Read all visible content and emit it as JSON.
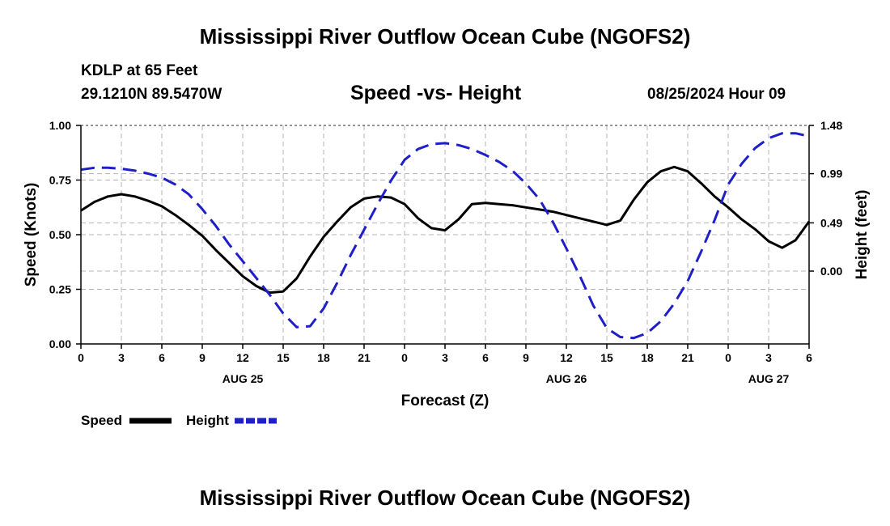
{
  "page": {
    "top_title": "Mississippi River Outflow Ocean Cube (NGOFS2)",
    "bottom_title": "Mississippi River Outflow Ocean Cube (NGOFS2)",
    "station": "KDLP at 65 Feet",
    "coords": "29.1210N  89.5470W",
    "plot_title": "Speed -vs- Height",
    "datetime": "08/25/2024 Hour 09"
  },
  "chart_data": {
    "type": "line",
    "title": "Speed -vs- Height",
    "xlabel": "Forecast (Z)",
    "ylabel": "Speed (Knots)",
    "y2label": "Height (feet)",
    "x_range_hours": [
      0,
      54
    ],
    "x_ticks": [
      {
        "h": 0,
        "label": "0"
      },
      {
        "h": 3,
        "label": "3"
      },
      {
        "h": 6,
        "label": "6"
      },
      {
        "h": 9,
        "label": "9"
      },
      {
        "h": 12,
        "label": "12"
      },
      {
        "h": 15,
        "label": "15"
      },
      {
        "h": 18,
        "label": "18"
      },
      {
        "h": 21,
        "label": "21"
      },
      {
        "h": 24,
        "label": "0"
      },
      {
        "h": 27,
        "label": "3"
      },
      {
        "h": 30,
        "label": "6"
      },
      {
        "h": 33,
        "label": "9"
      },
      {
        "h": 36,
        "label": "12"
      },
      {
        "h": 39,
        "label": "15"
      },
      {
        "h": 42,
        "label": "18"
      },
      {
        "h": 45,
        "label": "21"
      },
      {
        "h": 48,
        "label": "0"
      },
      {
        "h": 51,
        "label": "3"
      },
      {
        "h": 54,
        "label": "6"
      }
    ],
    "date_labels": [
      {
        "h": 12,
        "label": "AUG 25"
      },
      {
        "h": 36,
        "label": "AUG 26"
      },
      {
        "h": 51,
        "label": "AUG 27"
      }
    ],
    "ylim": [
      0,
      1.0
    ],
    "y_ticks": [
      {
        "v": 0.0,
        "label": "0.00"
      },
      {
        "v": 0.25,
        "label": "0.25"
      },
      {
        "v": 0.5,
        "label": "0.50"
      },
      {
        "v": 0.75,
        "label": "0.75"
      },
      {
        "v": 1.0,
        "label": "1.00"
      }
    ],
    "y2lim": [
      -0.74,
      1.48
    ],
    "y2_ticks": [
      {
        "v": 0.0,
        "label": "0.00"
      },
      {
        "v": 0.49,
        "label": "0.49"
      },
      {
        "v": 0.99,
        "label": "0.99"
      },
      {
        "v": 1.48,
        "label": "1.48"
      }
    ],
    "series": [
      {
        "name": "Speed",
        "axis": "left",
        "color": "#000000",
        "dash": false,
        "x": [
          0,
          1,
          2,
          3,
          4,
          5,
          6,
          7,
          8,
          9,
          10,
          11,
          12,
          13,
          14,
          15,
          16,
          17,
          18,
          19,
          20,
          21,
          22,
          23,
          24,
          25,
          26,
          27,
          28,
          29,
          30,
          31,
          32,
          33,
          34,
          35,
          36,
          37,
          38,
          39,
          40,
          41,
          42,
          43,
          44,
          45,
          46,
          47,
          48,
          49,
          50,
          51,
          52,
          53,
          54
        ],
        "values": [
          0.61,
          0.65,
          0.675,
          0.685,
          0.675,
          0.655,
          0.63,
          0.59,
          0.545,
          0.495,
          0.43,
          0.37,
          0.31,
          0.265,
          0.235,
          0.24,
          0.3,
          0.4,
          0.49,
          0.56,
          0.625,
          0.665,
          0.675,
          0.67,
          0.64,
          0.575,
          0.53,
          0.52,
          0.57,
          0.64,
          0.645,
          0.64,
          0.635,
          0.625,
          0.615,
          0.605,
          0.59,
          0.575,
          0.56,
          0.545,
          0.565,
          0.66,
          0.74,
          0.79,
          0.81,
          0.79,
          0.735,
          0.675,
          0.625,
          0.57,
          0.525,
          0.47,
          0.44,
          0.475,
          0.56
        ]
      },
      {
        "name": "Height",
        "axis": "right",
        "color": "#1f1fc8",
        "dash": true,
        "x": [
          0,
          1,
          2,
          3,
          4,
          5,
          6,
          7,
          8,
          9,
          10,
          11,
          12,
          13,
          14,
          15,
          16,
          17,
          18,
          19,
          20,
          21,
          22,
          23,
          24,
          25,
          26,
          27,
          28,
          29,
          30,
          31,
          32,
          33,
          34,
          35,
          36,
          37,
          38,
          39,
          40,
          41,
          42,
          43,
          44,
          45,
          46,
          47,
          48,
          49,
          50,
          51,
          52,
          53,
          54
        ],
        "values": [
          1.03,
          1.05,
          1.05,
          1.04,
          1.02,
          0.99,
          0.95,
          0.88,
          0.78,
          0.63,
          0.46,
          0.27,
          0.1,
          -0.07,
          -0.24,
          -0.43,
          -0.57,
          -0.56,
          -0.38,
          -0.12,
          0.16,
          0.42,
          0.68,
          0.92,
          1.13,
          1.24,
          1.29,
          1.3,
          1.28,
          1.24,
          1.18,
          1.11,
          1.02,
          0.89,
          0.73,
          0.5,
          0.23,
          -0.05,
          -0.35,
          -0.58,
          -0.67,
          -0.68,
          -0.63,
          -0.51,
          -0.33,
          -0.1,
          0.2,
          0.52,
          0.88,
          1.09,
          1.25,
          1.35,
          1.4,
          1.4,
          1.37
        ]
      }
    ],
    "legend": [
      {
        "name": "Speed",
        "color": "#000000",
        "dash": false
      },
      {
        "name": "Height",
        "color": "#1f1fc8",
        "dash": true
      }
    ]
  }
}
